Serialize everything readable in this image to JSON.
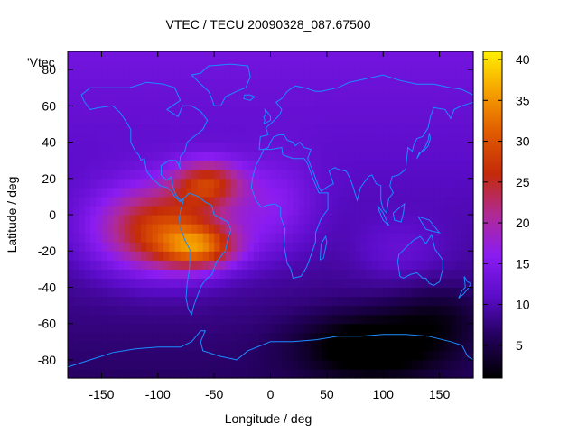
{
  "chart_data": {
    "type": "heatmap",
    "title": "VTEC / TECU 20090328_087.67500",
    "xlabel": "Longitude / deg",
    "ylabel": "Latitude / deg",
    "key_label": "'Vtec_",
    "xlim": [
      -180,
      180
    ],
    "ylim": [
      -90,
      90
    ],
    "x_ticks": [
      -150,
      -100,
      -50,
      0,
      50,
      100,
      150
    ],
    "y_ticks": [
      -80,
      -60,
      -40,
      -20,
      0,
      20,
      40,
      60,
      80
    ],
    "colorbar": {
      "range": [
        1,
        41
      ],
      "ticks": [
        5,
        10,
        15,
        20,
        25,
        30,
        35,
        40
      ],
      "palette": [
        "#000000",
        "#22005a",
        "#5a0cc8",
        "#8a1cf2",
        "#b02a95",
        "#c42a0a",
        "#e05a00",
        "#f5a000",
        "#fff000"
      ]
    },
    "grid": false,
    "legend": "top-left",
    "field": {
      "background_tecu": 10,
      "north_gradient_tecu_per_deg": 0.04,
      "anomalies": [
        {
          "lon": -95,
          "lat": -8,
          "peak_tecu": 19,
          "sigma_lon": 42,
          "sigma_lat": 17
        },
        {
          "lon": -55,
          "lat": 18,
          "peak_tecu": 14,
          "sigma_lon": 22,
          "sigma_lat": 9
        },
        {
          "lon": -62,
          "lat": -18,
          "peak_tecu": 14,
          "sigma_lon": 24,
          "sigma_lat": 8
        },
        {
          "lon": 5,
          "lat": 5,
          "peak_tecu": 5,
          "sigma_lon": 25,
          "sigma_lat": 18
        },
        {
          "lon": 115,
          "lat": -20,
          "peak_tecu": 3,
          "sigma_lon": 28,
          "sigma_lat": 12
        },
        {
          "lon": 90,
          "lat": -72,
          "peak_tecu": -9,
          "sigma_lon": 45,
          "sigma_lat": 13
        },
        {
          "lon": 150,
          "lat": -55,
          "peak_tecu": -4,
          "sigma_lon": 30,
          "sigma_lat": 12
        }
      ]
    },
    "coastline_color": "#1a8cff"
  }
}
